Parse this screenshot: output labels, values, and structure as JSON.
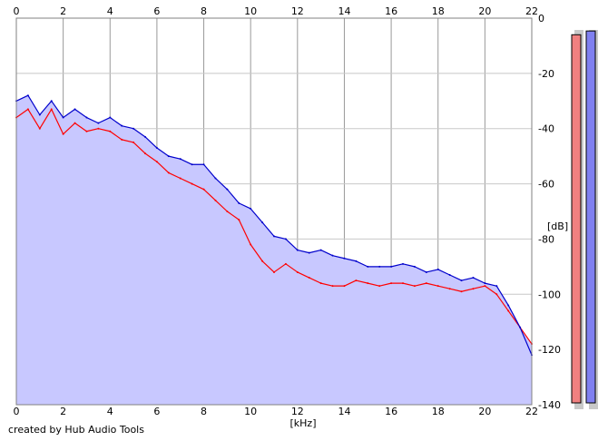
{
  "chart_data": {
    "type": "area",
    "xlabel": "[kHz]",
    "ylabel": "[dB]",
    "xlim": [
      0,
      22
    ],
    "ylim": [
      -140,
      0
    ],
    "x_ticks": [
      "0",
      "2",
      "4",
      "6",
      "8",
      "10",
      "12",
      "14",
      "16",
      "18",
      "20",
      "22"
    ],
    "y_ticks": [
      "0",
      "-20",
      "-40",
      "-60",
      "-80",
      "-100",
      "-120",
      "-140"
    ],
    "grid": true,
    "fill_color": "#c8c8ff",
    "series": [
      {
        "color": "#ff0000",
        "x": [
          0,
          0.5,
          1,
          1.5,
          2,
          2.5,
          3,
          3.5,
          4,
          4.5,
          5,
          5.5,
          6,
          6.5,
          7,
          7.5,
          8,
          8.5,
          9,
          9.5,
          10,
          10.5,
          11,
          11.5,
          12,
          12.5,
          13,
          13.5,
          14,
          14.5,
          15,
          15.5,
          16,
          16.5,
          17,
          17.5,
          18,
          18.5,
          19,
          19.5,
          20,
          20.5,
          21,
          21.5,
          22
        ],
        "values": [
          -36,
          -33,
          -40,
          -33,
          -42,
          -38,
          -41,
          -40,
          -41,
          -44,
          -45,
          -49,
          -52,
          -56,
          -58,
          -60,
          -62,
          -66,
          -70,
          -73,
          -82,
          -88,
          -92,
          -89,
          -92,
          -94,
          -96,
          -97,
          -97,
          -95,
          -96,
          -97,
          -96,
          -96,
          -97,
          -96,
          -97,
          -98,
          -99,
          -98,
          -97,
          -100,
          -106,
          -112,
          -118
        ]
      },
      {
        "color": "#0000cc",
        "x": [
          0,
          0.5,
          1,
          1.5,
          2,
          2.5,
          3,
          3.5,
          4,
          4.5,
          5,
          5.5,
          6,
          6.5,
          7,
          7.5,
          8,
          8.5,
          9,
          9.5,
          10,
          10.5,
          11,
          11.5,
          12,
          12.5,
          13,
          13.5,
          14,
          14.5,
          15,
          15.5,
          16,
          16.5,
          17,
          17.5,
          18,
          18.5,
          19,
          19.5,
          20,
          20.5,
          21,
          21.5,
          22
        ],
        "values": [
          -30,
          -28,
          -35,
          -30,
          -36,
          -33,
          -36,
          -38,
          -36,
          -39,
          -40,
          -43,
          -47,
          -50,
          -51,
          -53,
          -53,
          -58,
          -62,
          -67,
          -69,
          -74,
          -79,
          -80,
          -84,
          -85,
          -84,
          -86,
          -87,
          -88,
          -90,
          -90,
          -90,
          -89,
          -90,
          -92,
          -91,
          -93,
          -95,
          -94,
          -96,
          -97,
          -104,
          -112,
          -122
        ]
      }
    ],
    "level_meters": [
      {
        "color": "#f08080",
        "level": 0.98
      },
      {
        "color": "#8080f0",
        "level": 0.99
      }
    ]
  },
  "footer": {
    "credit": "created by Hub Audio Tools"
  }
}
